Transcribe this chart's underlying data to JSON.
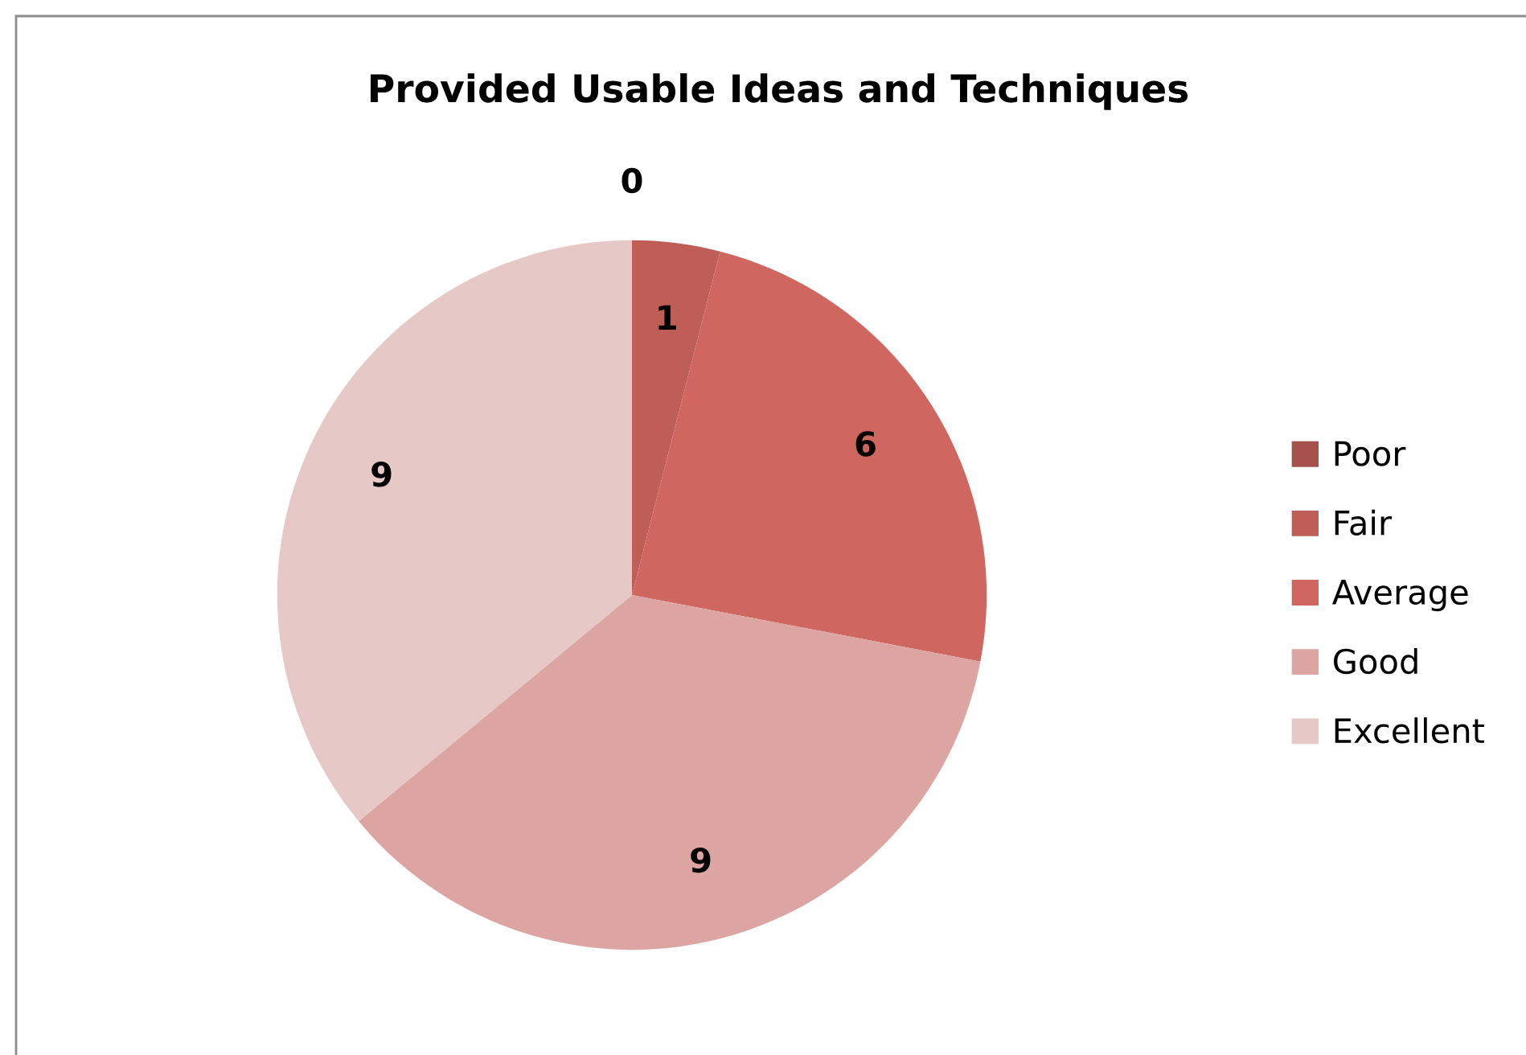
{
  "chart_data": {
    "type": "pie",
    "title": "Provided Usable Ideas and Techniques",
    "categories": [
      "Poor",
      "Fair",
      "Average",
      "Good",
      "Excellent"
    ],
    "values": [
      0,
      1,
      6,
      9,
      9
    ],
    "colors": [
      "#a5504a",
      "#bf5d57",
      "#cf6660",
      "#dca5a1",
      "#e6c8c6"
    ],
    "value_labels": [
      "0",
      "1",
      "6",
      "9",
      "9"
    ],
    "legend": "right"
  }
}
